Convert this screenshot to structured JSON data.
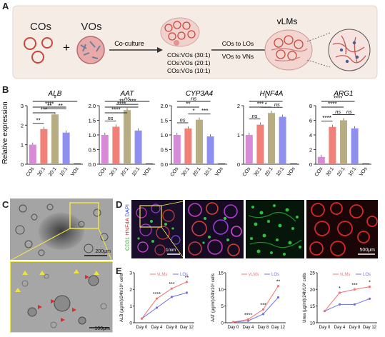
{
  "panel_labels": {
    "a": "A",
    "b": "B",
    "c": "C",
    "d": "D",
    "e": "E"
  },
  "panelA": {
    "cos": "COs",
    "plus": "+",
    "vos": "VOs",
    "coculture": "Co-culture",
    "ratios": [
      "COs:VOs (30:1)",
      "COs:VOs (20:1)",
      "COs:VOs (10:1)"
    ],
    "step2_line1": "COs to LOs",
    "step2_line2": "VOs to VNs",
    "vlms": "vLMs",
    "colors": {
      "box_bg": "#f5ece6",
      "co_ring": "#c9483e",
      "vo_fill": "#e9a9a9"
    }
  },
  "panelB": {
    "ylabel": "Relative expression",
    "categories": [
      "COs",
      "30:1",
      "20:1",
      "10:1",
      "VOs"
    ],
    "bar_colors": [
      "#d68ad8",
      "#f08078",
      "#b8ac82",
      "#8f8ff0",
      "#bbbbbb"
    ],
    "sig_ns": "ns",
    "charts": [
      {
        "gene": "ALB",
        "ymax": 3,
        "yticks": [
          "0",
          "1",
          "2",
          "3"
        ],
        "values": [
          1.0,
          1.8,
          2.55,
          1.62,
          0.0
        ],
        "sig": [
          {
            "i": 0,
            "j": 4,
            "label": "*"
          },
          {
            "i": 0,
            "j": 3,
            "label": "****"
          },
          {
            "i": 0,
            "j": 2,
            "label": "***"
          },
          {
            "i": 0,
            "j": 1,
            "label": "**"
          },
          {
            "i": 1,
            "j": 2,
            "label": "**"
          },
          {
            "i": 2,
            "j": 3,
            "label": "**"
          }
        ]
      },
      {
        "gene": "AAT",
        "ymax": 2.0,
        "yticks": [
          "0.0",
          "0.5",
          "1.0",
          "1.5",
          "2.0"
        ],
        "values": [
          1.0,
          1.28,
          1.85,
          1.15,
          0.0
        ],
        "sig": [
          {
            "i": 0,
            "j": 4,
            "label": "ns"
          },
          {
            "i": 0,
            "j": 3,
            "label": "****"
          },
          {
            "i": 0,
            "j": 2,
            "label": "****"
          },
          {
            "i": 0,
            "j": 1,
            "label": "ns"
          },
          {
            "i": 1,
            "j": 2,
            "label": "**"
          },
          {
            "i": 2,
            "j": 3,
            "label": "***"
          }
        ]
      },
      {
        "gene": "CYP3A4",
        "ymax": 2.0,
        "yticks": [
          "0.0",
          "0.5",
          "1.0",
          "1.5",
          "2.0"
        ],
        "values": [
          1.0,
          1.22,
          1.52,
          0.95,
          0.0
        ],
        "sig": [
          {
            "i": 0,
            "j": 3,
            "label": "ns"
          },
          {
            "i": 0,
            "j": 2,
            "label": "**"
          },
          {
            "i": 0,
            "j": 1,
            "label": "ns"
          },
          {
            "i": 1,
            "j": 2,
            "label": "*"
          },
          {
            "i": 2,
            "j": 3,
            "label": "***"
          }
        ]
      },
      {
        "gene": "HNF4A",
        "ymax": 2,
        "yticks": [
          "0",
          "1",
          "2"
        ],
        "values": [
          1.0,
          1.35,
          1.75,
          1.62,
          0.0
        ],
        "sig": [
          {
            "i": 0,
            "j": 3,
            "label": "*"
          },
          {
            "i": 0,
            "j": 2,
            "label": "***"
          },
          {
            "i": 0,
            "j": 1,
            "label": "ns"
          },
          {
            "i": 1,
            "j": 2,
            "label": "*"
          },
          {
            "i": 2,
            "j": 3,
            "label": "ns"
          }
        ]
      },
      {
        "gene": "ARG1",
        "ymax": 8,
        "yticks": [
          "0",
          "2",
          "4",
          "6",
          "8"
        ],
        "values": [
          1.0,
          5.1,
          6.0,
          4.9,
          0.0
        ],
        "sig": [
          {
            "i": 0,
            "j": 3,
            "label": "****"
          },
          {
            "i": 0,
            "j": 2,
            "label": "****"
          },
          {
            "i": 0,
            "j": 1,
            "label": "****"
          },
          {
            "i": 1,
            "j": 2,
            "label": "ns"
          },
          {
            "i": 2,
            "j": 3,
            "label": "ns"
          }
        ]
      }
    ]
  },
  "panelC": {
    "scale_top": "200μm",
    "scale_bottom": "100μm"
  },
  "panelD": {
    "ylabel_cd31": "CD31",
    "ylabel_hnf4a": "HNF4A",
    "ylabel_dapi": "DAPI",
    "scale_left": "1mm",
    "scale_right": "500μm"
  },
  "panelE": {
    "legend": [
      "vLMs",
      "LOs"
    ],
    "colors": {
      "vlms": "#f07575",
      "los": "#6f6fe6"
    },
    "x_categories": [
      "Day 0",
      "Day 4",
      "Day 8",
      "Day 12"
    ],
    "charts": [
      {
        "ylabel": "ALB (μg/ml)/24h/10⁶ cells",
        "ymax": 3,
        "yticks": [
          "0",
          "1",
          "2",
          "3"
        ],
        "vlms": [
          0.25,
          1.45,
          2.05,
          2.45
        ],
        "los": [
          0.25,
          0.9,
          1.55,
          1.8
        ],
        "stars": [
          "",
          "****",
          "***",
          "**"
        ]
      },
      {
        "ylabel": "AAT (μg/ml)/24h/10⁶ cells",
        "ymax": 15,
        "yticks": [
          "0",
          "5",
          "10",
          "15"
        ],
        "vlms": [
          0.2,
          1.0,
          4.0,
          11.0
        ],
        "los": [
          0.2,
          0.6,
          2.6,
          7.6
        ],
        "stars": [
          "",
          "****",
          "***",
          "**"
        ]
      },
      {
        "ylabel": "Urea (μg/ml)/24h/10⁶ cells",
        "ymax": 25,
        "ymin": 10,
        "yticks": [
          "10",
          "15",
          "20",
          "25"
        ],
        "vlms": [
          13.5,
          19.0,
          20.0,
          20.8
        ],
        "los": [
          13.5,
          15.5,
          15.5,
          17.2
        ],
        "stars": [
          "",
          "*",
          "***",
          "*"
        ]
      }
    ]
  }
}
